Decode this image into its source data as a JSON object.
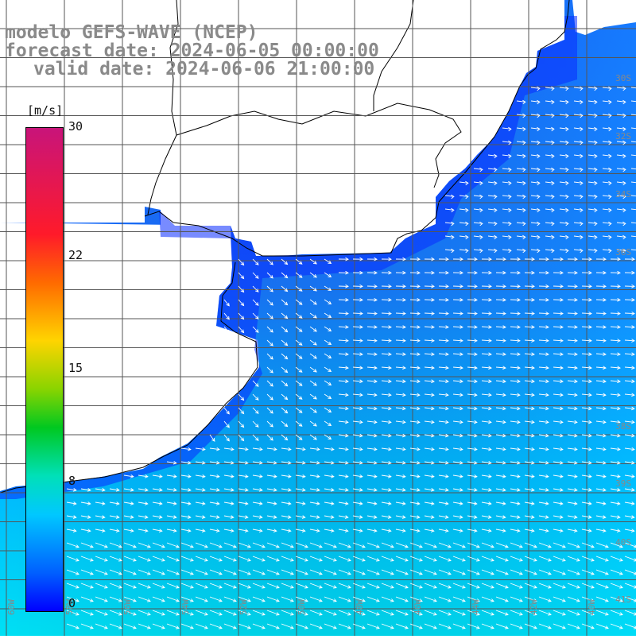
{
  "title": {
    "line1": "modelo GEFS-WAVE (NCEP)",
    "line2": "forecast date: 2024-06-05 00:00:00",
    "line3": "valid date: 2024-06-06 21:00:00"
  },
  "colorbar": {
    "unit": "[m/s]",
    "ticks": [
      "30",
      "22",
      "15",
      "8",
      "0"
    ],
    "tick_values": [
      30,
      22,
      15,
      8,
      0
    ],
    "range": [
      0,
      30
    ],
    "colors": [
      "#c8147a",
      "#ff1a2a",
      "#ff6a00",
      "#ffd400",
      "#8ad400",
      "#00c820",
      "#00e0b8",
      "#00c8ff",
      "#0060ff",
      "#0000ff"
    ]
  },
  "map": {
    "lat_labels": [
      "30S",
      "32S",
      "34S",
      "36S",
      "38S",
      "39S",
      "40S",
      "41S"
    ],
    "lon_labels": [
      "60W",
      "58W",
      "56W",
      "54W",
      "52W",
      "50W",
      "48W",
      "46W",
      "44W",
      "42W",
      "40W"
    ],
    "colors": {
      "land": "#ffffff",
      "grid": "#555555",
      "arrow": "#ffffff",
      "coast": "#000000",
      "label": "#888888"
    }
  }
}
